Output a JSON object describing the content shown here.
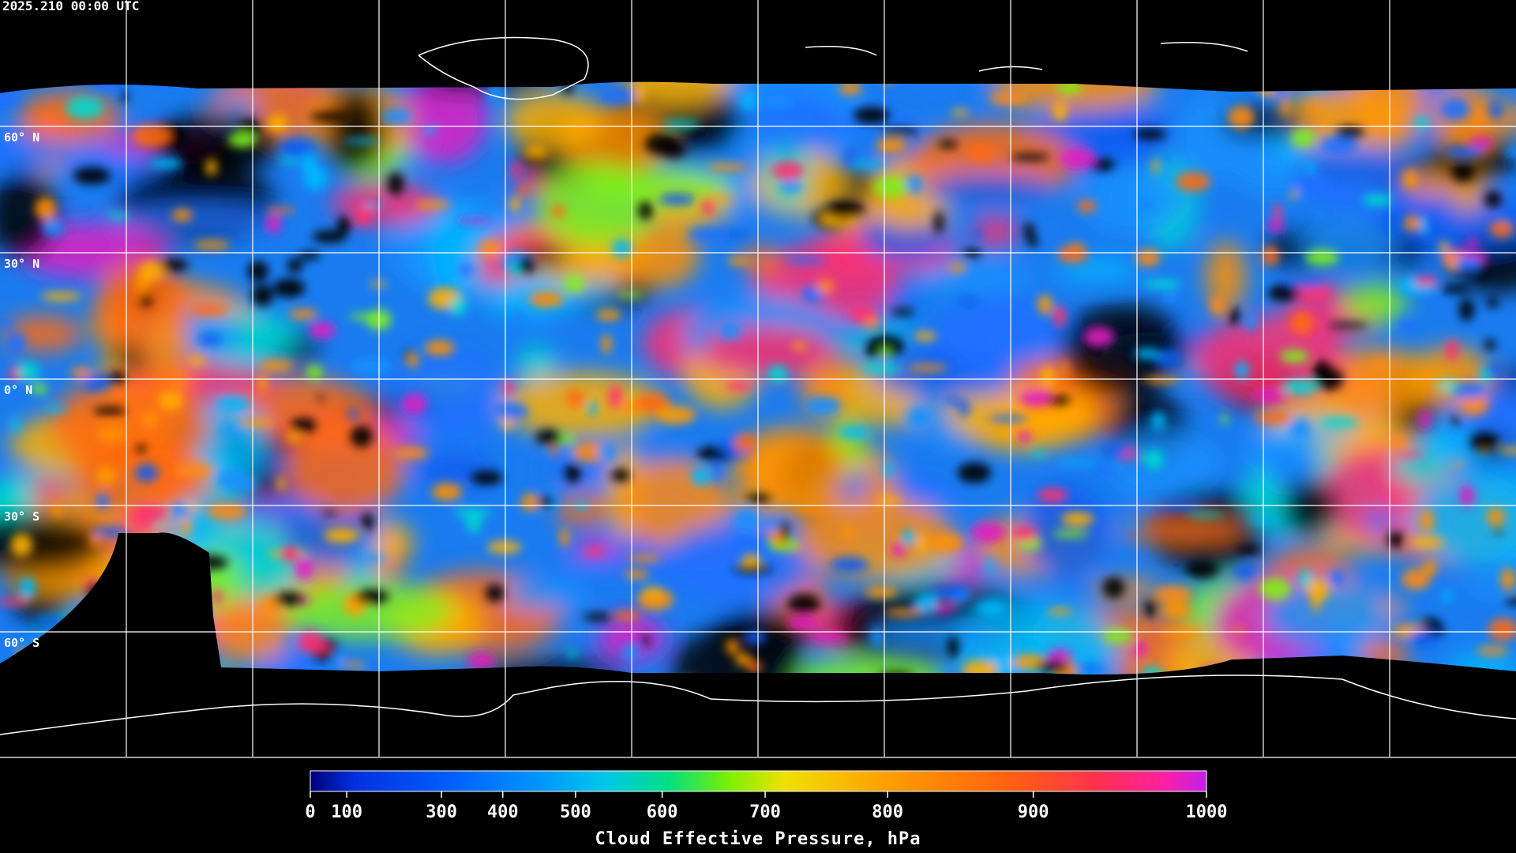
{
  "header": {
    "title": "2025.210 00:00 UTC"
  },
  "map": {
    "lat_labels": [
      "60° N",
      "30° N",
      "0° N",
      "30° S",
      "60° S"
    ]
  },
  "colorbar": {
    "ticks": [
      0,
      100,
      300,
      400,
      500,
      600,
      700,
      800,
      900,
      1000
    ],
    "label": "Cloud Effective Pressure, hPa"
  }
}
